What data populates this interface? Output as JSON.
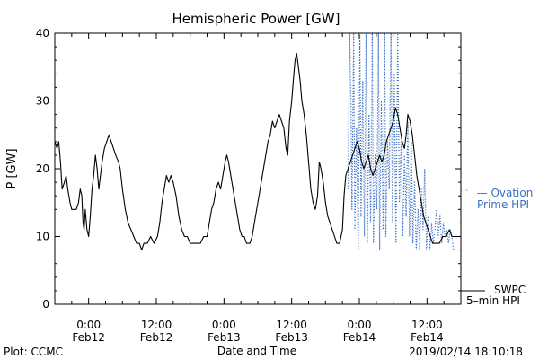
{
  "chart_data": {
    "type": "line",
    "title": "Hemispheric Power [GW]",
    "xlabel": "Date and Time",
    "ylabel": "P [GW]",
    "x_unit": "hours relative to 2019-02-12 00:00 UT",
    "xlim": [
      -6,
      66
    ],
    "ylim": [
      0,
      40
    ],
    "yticks": [
      0,
      10,
      20,
      30,
      40
    ],
    "xticks": [
      {
        "x": 0,
        "line1": "0:00",
        "line2": "Feb12"
      },
      {
        "x": 12,
        "line1": "12:00",
        "line2": "Feb12"
      },
      {
        "x": 24,
        "line1": "0:00",
        "line2": "Feb13"
      },
      {
        "x": 36,
        "line1": "12:00",
        "line2": "Feb13"
      },
      {
        "x": 48,
        "line1": "0:00",
        "line2": "Feb14"
      },
      {
        "x": 60,
        "line1": "12:00",
        "line2": "Feb14"
      }
    ],
    "grid": false,
    "footer_left": "Plot: CCMC",
    "footer_right": "2019/02/14 18:10:18",
    "series": [
      {
        "name": "SWPC 5-min HPI",
        "label_lines": [
          "SWPC",
          "5–min HPI"
        ],
        "style": "solid",
        "color": "#000000",
        "points": [
          [
            -6.0,
            24
          ],
          [
            -5.6,
            23
          ],
          [
            -5.3,
            24
          ],
          [
            -5.0,
            21
          ],
          [
            -4.7,
            17
          ],
          [
            -4.3,
            18
          ],
          [
            -4.0,
            19
          ],
          [
            -3.7,
            17
          ],
          [
            -3.3,
            15
          ],
          [
            -3.0,
            14
          ],
          [
            -2.6,
            14
          ],
          [
            -2.2,
            14
          ],
          [
            -1.8,
            15
          ],
          [
            -1.5,
            17
          ],
          [
            -1.2,
            16
          ],
          [
            -1.0,
            12
          ],
          [
            -0.8,
            11
          ],
          [
            -0.6,
            14
          ],
          [
            -0.3,
            11
          ],
          [
            0.0,
            10
          ],
          [
            0.3,
            13
          ],
          [
            0.6,
            17
          ],
          [
            0.9,
            19
          ],
          [
            1.2,
            22
          ],
          [
            1.5,
            20
          ],
          [
            1.8,
            17
          ],
          [
            2.1,
            19
          ],
          [
            2.4,
            21
          ],
          [
            2.8,
            23
          ],
          [
            3.2,
            24
          ],
          [
            3.6,
            25
          ],
          [
            4.0,
            24
          ],
          [
            4.4,
            23
          ],
          [
            4.8,
            22
          ],
          [
            5.3,
            21
          ],
          [
            5.6,
            20
          ],
          [
            6.0,
            17
          ],
          [
            6.5,
            14
          ],
          [
            7.0,
            12
          ],
          [
            7.5,
            11
          ],
          [
            8.0,
            10
          ],
          [
            8.5,
            9
          ],
          [
            9.0,
            9
          ],
          [
            9.4,
            8
          ],
          [
            9.8,
            9
          ],
          [
            10.4,
            9
          ],
          [
            11.0,
            10
          ],
          [
            11.6,
            9
          ],
          [
            12.2,
            10
          ],
          [
            12.6,
            12
          ],
          [
            13.0,
            15
          ],
          [
            13.4,
            17
          ],
          [
            13.8,
            19
          ],
          [
            14.2,
            18
          ],
          [
            14.6,
            19
          ],
          [
            15.0,
            18
          ],
          [
            15.5,
            16
          ],
          [
            16.0,
            13
          ],
          [
            16.5,
            11
          ],
          [
            17.0,
            10
          ],
          [
            17.5,
            10
          ],
          [
            18.0,
            9
          ],
          [
            18.6,
            9
          ],
          [
            19.2,
            9
          ],
          [
            19.8,
            9
          ],
          [
            20.4,
            10
          ],
          [
            21.0,
            10
          ],
          [
            21.4,
            12
          ],
          [
            21.8,
            14
          ],
          [
            22.2,
            15
          ],
          [
            22.6,
            17
          ],
          [
            23.0,
            18
          ],
          [
            23.4,
            17
          ],
          [
            23.8,
            19
          ],
          [
            24.2,
            21
          ],
          [
            24.5,
            22
          ],
          [
            24.8,
            21
          ],
          [
            25.2,
            19
          ],
          [
            25.6,
            17
          ],
          [
            26.0,
            15
          ],
          [
            26.4,
            13
          ],
          [
            26.8,
            11
          ],
          [
            27.2,
            10
          ],
          [
            27.6,
            10
          ],
          [
            28.0,
            9
          ],
          [
            28.6,
            9
          ],
          [
            29.0,
            10
          ],
          [
            29.4,
            12
          ],
          [
            29.8,
            14
          ],
          [
            30.2,
            16
          ],
          [
            30.6,
            18
          ],
          [
            31.0,
            20
          ],
          [
            31.4,
            22
          ],
          [
            31.8,
            24
          ],
          [
            32.2,
            25
          ],
          [
            32.6,
            27
          ],
          [
            33.0,
            26
          ],
          [
            33.4,
            27
          ],
          [
            33.8,
            28
          ],
          [
            34.2,
            27
          ],
          [
            34.6,
            26
          ],
          [
            35.0,
            23
          ],
          [
            35.3,
            22
          ],
          [
            35.6,
            27
          ],
          [
            36.0,
            30
          ],
          [
            36.3,
            33
          ],
          [
            36.6,
            36
          ],
          [
            36.9,
            37
          ],
          [
            37.2,
            35
          ],
          [
            37.5,
            33
          ],
          [
            37.8,
            30
          ],
          [
            38.2,
            28
          ],
          [
            38.6,
            25
          ],
          [
            39.0,
            21
          ],
          [
            39.4,
            17
          ],
          [
            39.8,
            15
          ],
          [
            40.2,
            14
          ],
          [
            40.6,
            16
          ],
          [
            40.9,
            21
          ],
          [
            41.2,
            20
          ],
          [
            41.6,
            18
          ],
          [
            42.0,
            15
          ],
          [
            42.4,
            13
          ],
          [
            42.8,
            12
          ],
          [
            43.2,
            11
          ],
          [
            43.6,
            10
          ],
          [
            44.0,
            9
          ],
          [
            44.5,
            9
          ],
          [
            45.0,
            11
          ],
          [
            45.3,
            16
          ],
          [
            45.6,
            19
          ],
          [
            46.0,
            20
          ],
          [
            46.4,
            21
          ],
          [
            46.8,
            22
          ],
          [
            47.2,
            23
          ],
          [
            47.6,
            24
          ],
          [
            48.0,
            23
          ],
          [
            48.4,
            21
          ],
          [
            48.8,
            20
          ],
          [
            49.2,
            21
          ],
          [
            49.6,
            22
          ],
          [
            50.0,
            20
          ],
          [
            50.4,
            19
          ],
          [
            50.8,
            20
          ],
          [
            51.2,
            21
          ],
          [
            51.6,
            22
          ],
          [
            52.0,
            21
          ],
          [
            52.4,
            22
          ],
          [
            52.8,
            24
          ],
          [
            53.2,
            25
          ],
          [
            53.6,
            26
          ],
          [
            54.0,
            27
          ],
          [
            54.4,
            29
          ],
          [
            54.8,
            28
          ],
          [
            55.2,
            26
          ],
          [
            55.6,
            24
          ],
          [
            56.0,
            23
          ],
          [
            56.3,
            25
          ],
          [
            56.6,
            28
          ],
          [
            57.0,
            27
          ],
          [
            57.4,
            25
          ],
          [
            57.8,
            22
          ],
          [
            58.2,
            19
          ],
          [
            58.6,
            17
          ],
          [
            59.0,
            15
          ],
          [
            59.4,
            13
          ],
          [
            59.8,
            12
          ],
          [
            60.2,
            11
          ],
          [
            60.6,
            10
          ],
          [
            61.0,
            9
          ],
          [
            61.6,
            9
          ],
          [
            62.2,
            9
          ],
          [
            62.8,
            10
          ],
          [
            63.4,
            10
          ],
          [
            64.0,
            11
          ],
          [
            64.4,
            10
          ],
          [
            64.8,
            10
          ],
          [
            65.2,
            10
          ]
        ]
      },
      {
        "name": "Ovation Prime HPI",
        "label_lines": [
          "— Ovation",
          "Prime HPI"
        ],
        "style": "dotted",
        "color": "#3a6fc4",
        "points": [
          [
            46.0,
            17
          ],
          [
            46.3,
            40
          ],
          [
            46.5,
            30
          ],
          [
            46.7,
            14
          ],
          [
            47.0,
            40
          ],
          [
            47.2,
            11
          ],
          [
            47.5,
            26
          ],
          [
            47.8,
            8
          ],
          [
            48.1,
            40
          ],
          [
            48.3,
            13
          ],
          [
            48.6,
            33
          ],
          [
            48.9,
            10
          ],
          [
            49.2,
            40
          ],
          [
            49.4,
            9
          ],
          [
            49.7,
            28
          ],
          [
            50.0,
            12
          ],
          [
            50.3,
            40
          ],
          [
            50.5,
            9
          ],
          [
            50.8,
            22
          ],
          [
            51.1,
            14
          ],
          [
            51.4,
            40
          ],
          [
            51.6,
            8
          ],
          [
            51.9,
            30
          ],
          [
            52.2,
            11
          ],
          [
            52.5,
            40
          ],
          [
            52.7,
            10
          ],
          [
            53.0,
            24
          ],
          [
            53.3,
            17
          ],
          [
            53.6,
            40
          ],
          [
            53.9,
            12
          ],
          [
            54.2,
            34
          ],
          [
            54.5,
            9
          ],
          [
            54.8,
            40
          ],
          [
            55.1,
            15
          ],
          [
            55.4,
            24
          ],
          [
            55.7,
            10
          ],
          [
            56.0,
            22
          ],
          [
            56.3,
            13
          ],
          [
            56.6,
            27
          ],
          [
            56.9,
            10
          ],
          [
            57.2,
            24
          ],
          [
            57.5,
            9
          ],
          [
            57.8,
            18
          ],
          [
            58.1,
            8
          ],
          [
            58.4,
            14
          ],
          [
            58.7,
            8
          ],
          [
            59.0,
            17
          ],
          [
            59.3,
            11
          ],
          [
            59.6,
            20
          ],
          [
            59.9,
            8
          ],
          [
            60.2,
            13
          ],
          [
            60.5,
            8
          ],
          [
            60.8,
            12
          ],
          [
            61.1,
            9
          ],
          [
            61.4,
            11
          ],
          [
            61.7,
            14
          ],
          [
            62.0,
            10
          ],
          [
            62.3,
            13
          ],
          [
            62.6,
            9
          ],
          [
            62.9,
            12
          ],
          [
            63.2,
            10
          ],
          [
            63.5,
            11
          ],
          [
            63.8,
            9
          ],
          [
            64.1,
            11
          ],
          [
            64.4,
            10
          ],
          [
            64.7,
            8
          ]
        ]
      }
    ]
  }
}
